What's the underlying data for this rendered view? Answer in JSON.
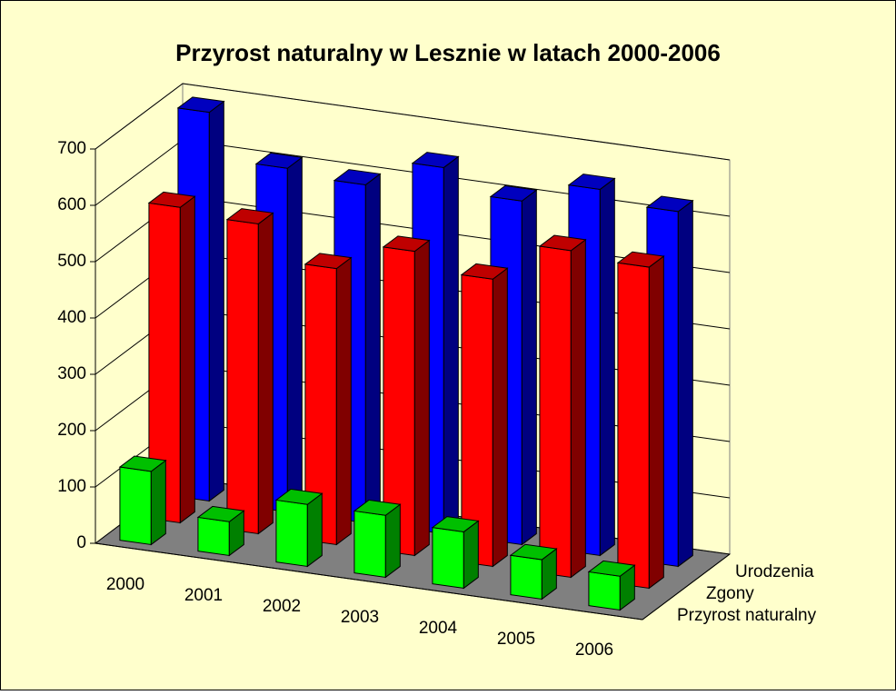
{
  "chart_data": {
    "type": "bar3d",
    "title": "Przyrost naturalny w Lesznie w latach 2000-2006",
    "categories": [
      "2000",
      "2001",
      "2002",
      "2003",
      "2004",
      "2005",
      "2006"
    ],
    "series": [
      {
        "name": "Przyrost naturalny",
        "color": "#00ff00",
        "values": [
          130,
          60,
          110,
          110,
          100,
          70,
          60
        ]
      },
      {
        "name": "Zgony",
        "color": "#ff0000",
        "values": [
          560,
          550,
          490,
          540,
          510,
          580,
          570
        ]
      },
      {
        "name": "Urodzenia",
        "color": "#0000ff",
        "values": [
          690,
          610,
          600,
          650,
          610,
          650,
          630
        ]
      }
    ],
    "ylim": [
      0,
      700
    ],
    "yticks": [
      0,
      100,
      200,
      300,
      400,
      500,
      600,
      700
    ],
    "grid": true
  }
}
